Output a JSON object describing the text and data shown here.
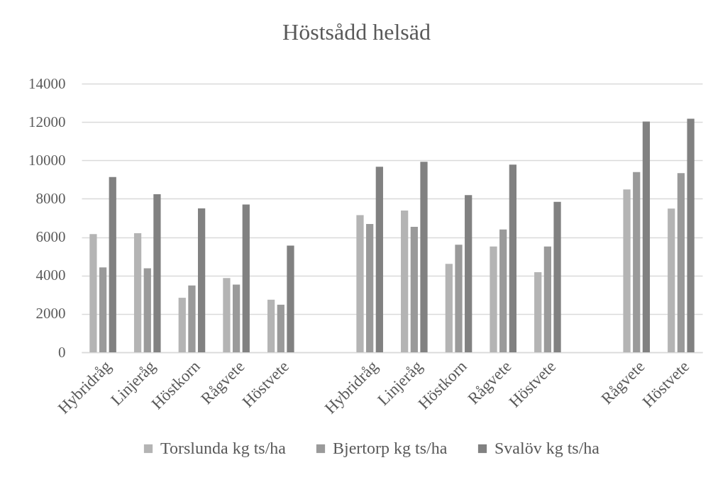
{
  "chart_data": {
    "type": "bar",
    "title": "Höstsådd helsäd",
    "categories": [
      "Hybridråg",
      "Linjeråg",
      "Höstkorn",
      "Rågvete",
      "Höstvete",
      null,
      "Hybridråg",
      "Linjeråg",
      "Höstkorn",
      "Rågvete",
      "Höstvete",
      null,
      "Rågvete",
      "Höstvete"
    ],
    "series": [
      {
        "name": "Torslunda kg ts/ha",
        "color": "#b4b4b4",
        "values": [
          6160,
          6210,
          2840,
          3870,
          2740,
          null,
          7150,
          7390,
          4610,
          5510,
          4170,
          null,
          8490,
          7490
        ]
      },
      {
        "name": "Bjertorp kg ts/ha",
        "color": "#9a9a9a",
        "values": [
          4420,
          4380,
          3480,
          3530,
          2480,
          null,
          6690,
          6540,
          5610,
          6400,
          5510,
          null,
          9390,
          9340
        ]
      },
      {
        "name": "Svalöv kg ts/ha",
        "color": "#818181",
        "values": [
          9130,
          8240,
          7500,
          7700,
          5560,
          null,
          9670,
          9930,
          8190,
          9780,
          7840,
          null,
          12020,
          12170
        ]
      }
    ],
    "ylim": [
      0,
      14000
    ],
    "yticks": [
      0,
      2000,
      4000,
      6000,
      8000,
      10000,
      12000,
      14000
    ],
    "grid": "y",
    "legend": "bottom"
  }
}
